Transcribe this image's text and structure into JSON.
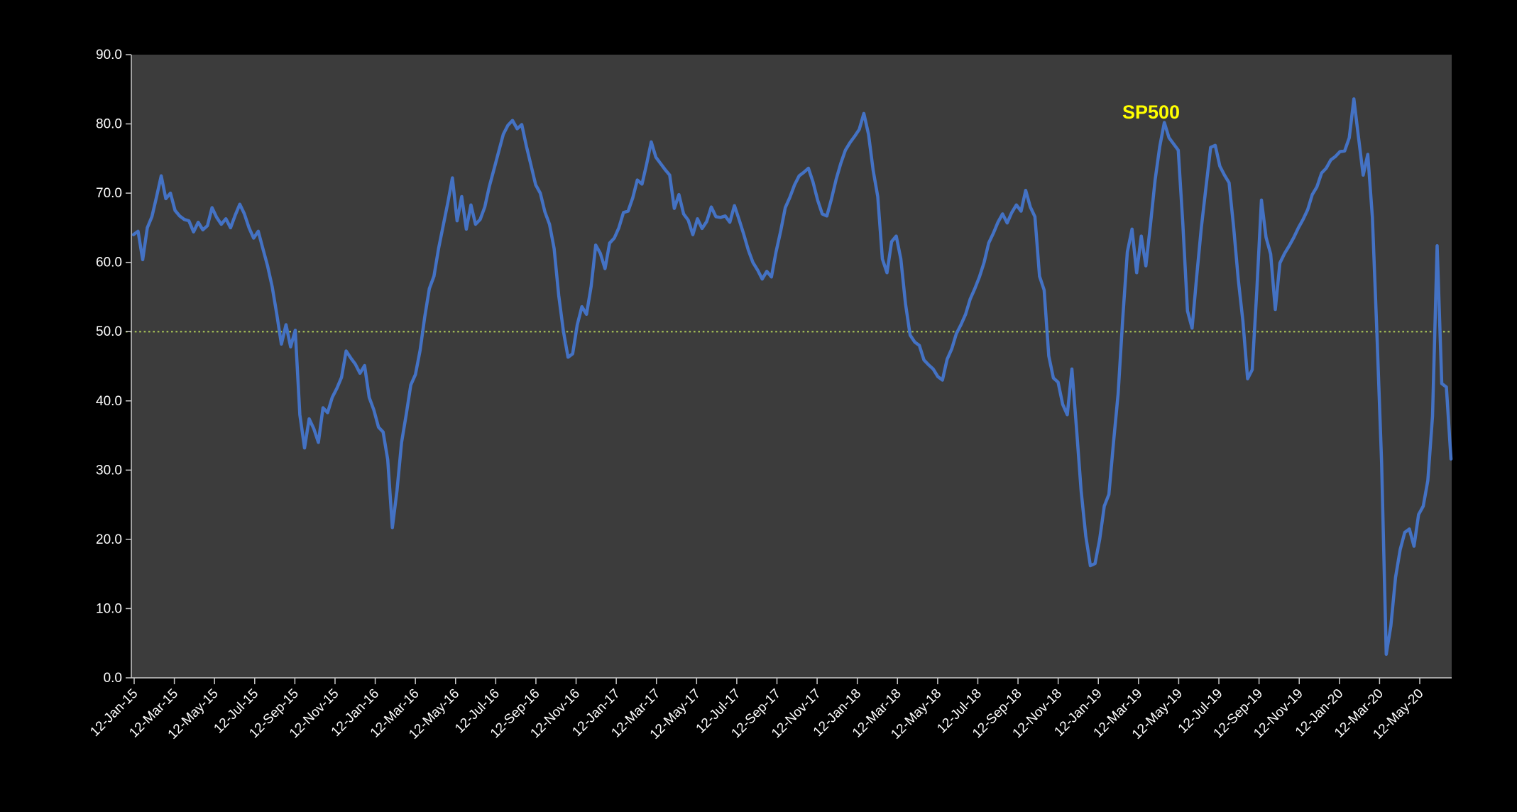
{
  "window": {
    "background": "#000000"
  },
  "chart_data": {
    "type": "line",
    "title": "",
    "series": [
      {
        "name": "SP500",
        "color": "#4472C4",
        "values": [
          64.0,
          64.5,
          60.4,
          65.0,
          66.6,
          69.5,
          72.5,
          69.2,
          70.0,
          67.5,
          66.7,
          66.2,
          66.0,
          64.4,
          65.8,
          64.7,
          65.3,
          67.9,
          66.5,
          65.5,
          66.3,
          65.0,
          66.8,
          68.4,
          67.0,
          65.0,
          63.5,
          64.5,
          62.0,
          59.5,
          56.5,
          52.5,
          48.2,
          51.0,
          47.8,
          50.2,
          38.0,
          33.2,
          37.4,
          36.0,
          34.0,
          39.0,
          38.3,
          40.5,
          41.8,
          43.4,
          47.2,
          46.2,
          45.3,
          44.0,
          45.1,
          40.5,
          38.7,
          36.2,
          35.5,
          31.5,
          21.7,
          27.0,
          34.0,
          38.0,
          42.3,
          43.8,
          47.3,
          52.1,
          56.2,
          58.0,
          62.0,
          65.3,
          68.6,
          72.2,
          66.0,
          69.5,
          64.8,
          68.3,
          65.5,
          66.2,
          68.0,
          71.0,
          73.5,
          76.0,
          78.5,
          79.8,
          80.5,
          79.3,
          79.9,
          76.8,
          74.0,
          71.2,
          70.0,
          67.3,
          65.5,
          62.0,
          55.2,
          50.1,
          46.3,
          46.8,
          51.0,
          53.6,
          52.5,
          56.5,
          62.5,
          61.3,
          59.1,
          62.8,
          63.5,
          65.0,
          67.2,
          67.4,
          69.3,
          71.9,
          71.3,
          74.2,
          77.4,
          75.2,
          74.3,
          73.4,
          72.6,
          67.8,
          69.8,
          67.0,
          66.1,
          64.0,
          66.3,
          64.9,
          65.9,
          68.0,
          66.6,
          66.5,
          66.7,
          65.8,
          68.2,
          66.2,
          64.1,
          61.8,
          60.0,
          58.9,
          57.6,
          58.7,
          57.9,
          61.5,
          64.5,
          67.9,
          69.4,
          71.2,
          72.5,
          73.0,
          73.6,
          71.6,
          69.0,
          67.0,
          66.7,
          69.2,
          72.0,
          74.3,
          76.2,
          77.3,
          78.2,
          79.2,
          81.5,
          78.5,
          73.3,
          69.5,
          60.5,
          58.5,
          63.0,
          63.8,
          60.5,
          54.0,
          49.5,
          48.5,
          48.0,
          45.9,
          45.2,
          44.6,
          43.5,
          43.0,
          46.0,
          47.5,
          49.7,
          51.0,
          52.5,
          54.7,
          56.2,
          57.9,
          60.0,
          62.8,
          64.2,
          65.8,
          67.0,
          65.7,
          67.2,
          68.3,
          67.4,
          70.4,
          68.0,
          66.6,
          58.0,
          56.0,
          46.5,
          43.3,
          42.7,
          39.5,
          38.0,
          44.6,
          36.0,
          27.0,
          20.5,
          16.2,
          16.5,
          20.0,
          24.8,
          26.5,
          34.0,
          41.0,
          51.9,
          61.5,
          64.8,
          58.5,
          63.8,
          59.5,
          65.5,
          71.9,
          76.7,
          80.2,
          78.0,
          77.1,
          76.2,
          65.5,
          53.0,
          50.5,
          58.0,
          65.0,
          70.8,
          76.6,
          76.9,
          73.9,
          72.6,
          71.5,
          65.0,
          57.5,
          51.5,
          43.2,
          44.5,
          56.0,
          69.0,
          63.6,
          61.2,
          53.2,
          59.9,
          61.3,
          62.4,
          63.6,
          65.0,
          66.2,
          67.6,
          69.8,
          70.9,
          72.9,
          73.6,
          74.8,
          75.3,
          76.0,
          76.1,
          78.0,
          83.6,
          78.0,
          72.6,
          75.6,
          66.5,
          49.4,
          31.0,
          3.4,
          7.5,
          14.5,
          18.5,
          21.0,
          21.5,
          19.0,
          23.6,
          24.8,
          28.5,
          37.8,
          62.4,
          42.5,
          42.0,
          31.6
        ]
      }
    ],
    "x_axis": {
      "start_date": "2015-01-12",
      "interval_days": 7,
      "label_rotation_deg": -45,
      "tick_labels": [
        "12-Jan-15",
        "12-Mar-15",
        "12-May-15",
        "12-Jul-15",
        "12-Sep-15",
        "12-Nov-15",
        "12-Jan-16",
        "12-Mar-16",
        "12-May-16",
        "12-Jul-16",
        "12-Sep-16",
        "12-Nov-16",
        "12-Jan-17",
        "12-Mar-17",
        "12-May-17",
        "12-Jul-17",
        "12-Sep-17",
        "12-Nov-17",
        "12-Jan-18",
        "12-Mar-18",
        "12-May-18",
        "12-Jul-18",
        "12-Sep-18",
        "12-Nov-18",
        "12-Jan-19",
        "12-Mar-19",
        "12-May-19",
        "12-Jul-19",
        "12-Sep-19",
        "12-Nov-19",
        "12-Jan-20",
        "12-Mar-20",
        "12-May-20"
      ]
    },
    "y_axis": {
      "min": 0,
      "max": 90,
      "tick_step": 10,
      "tick_labels": [
        "0.0",
        "10.0",
        "20.0",
        "30.0",
        "40.0",
        "50.0",
        "60.0",
        "70.0",
        "80.0",
        "90.0"
      ]
    },
    "reference_line": {
      "value": 50,
      "style": "dotted",
      "color": "#A4BE55"
    },
    "legend": {
      "label": "SP500",
      "color": "#FFFF00",
      "position": "top-right-inside"
    },
    "plot_area_color": "#3C3C3C",
    "axis_color": "#C9C9C9",
    "text_color": "#FFFFFF",
    "grid": "off"
  }
}
